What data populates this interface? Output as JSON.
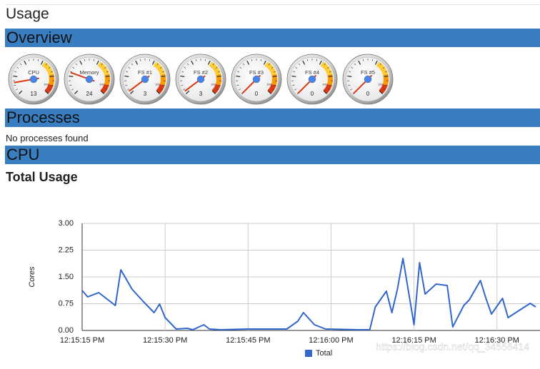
{
  "header": {
    "title": "Usage"
  },
  "sections": {
    "overview": "Overview",
    "processes": "Processes",
    "cpu": "CPU"
  },
  "gauges": {
    "max": 100,
    "items": [
      {
        "label": "CPU",
        "value": 13
      },
      {
        "label": "Memory",
        "value": 24
      },
      {
        "label": "FS #1",
        "value": 3
      },
      {
        "label": "FS #2",
        "value": 3
      },
      {
        "label": "FS #3",
        "value": 0
      },
      {
        "label": "FS #4",
        "value": 0
      },
      {
        "label": "FS #5",
        "value": 0
      }
    ]
  },
  "processes": {
    "message": "No processes found"
  },
  "cpu": {
    "subtitle": "Total Usage"
  },
  "chart_data": {
    "type": "line",
    "y_label": "Cores",
    "grid": true,
    "legend": "bottom",
    "x": [
      44115,
      44116,
      44118,
      44119,
      44121,
      44122,
      44124,
      44126,
      44128,
      44129,
      44130,
      44132,
      44134,
      44135,
      44137,
      44138,
      44140,
      44145,
      44152,
      44154,
      44155,
      44157,
      44159,
      44165,
      44167,
      44168,
      44170,
      44171,
      44172,
      44173,
      44175,
      44176,
      44177,
      44179,
      44181,
      44182,
      44184,
      44185,
      44187,
      44188,
      44189,
      44191,
      44192,
      44194,
      44196,
      44197
    ],
    "xlim": [
      44115,
      44197
    ],
    "xticks": [
      {
        "value": 44115,
        "label": "12:15:15 PM"
      },
      {
        "value": 44130,
        "label": "12:15:30 PM"
      },
      {
        "value": 44145,
        "label": "12:15:45 PM"
      },
      {
        "value": 44160,
        "label": "12:16:00 PM"
      },
      {
        "value": 44175,
        "label": "12:16:15 PM"
      },
      {
        "value": 44190,
        "label": "12:16:30 PM"
      }
    ],
    "ylim": [
      0,
      3
    ],
    "yticks": [
      {
        "value": 0,
        "label": "0.00"
      },
      {
        "value": 0.75,
        "label": "0.75"
      },
      {
        "value": 1.5,
        "label": "1.50"
      },
      {
        "value": 2.25,
        "label": "2.25"
      },
      {
        "value": 3,
        "label": "3.00"
      }
    ],
    "series": [
      {
        "name": "Total",
        "color": "#3366cc",
        "values": [
          1.12,
          0.94,
          1.06,
          0.94,
          0.7,
          1.7,
          1.16,
          0.82,
          0.5,
          0.74,
          0.36,
          0.04,
          0.06,
          0.02,
          0.16,
          0.04,
          0.02,
          0.04,
          0.04,
          0.26,
          0.5,
          0.16,
          0.04,
          0.02,
          0.02,
          0.66,
          1.1,
          0.5,
          1.16,
          2.02,
          0.16,
          1.9,
          1.02,
          1.3,
          1.26,
          0.1,
          0.7,
          0.86,
          1.4,
          0.9,
          0.46,
          0.9,
          0.36,
          0.56,
          0.76,
          0.66
        ]
      }
    ]
  },
  "watermark": "https://blog.csdn.net/qq_34556414"
}
